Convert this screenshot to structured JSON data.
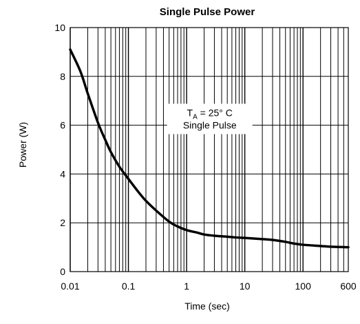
{
  "chart_data": {
    "type": "line",
    "title": "Single Pulse Power",
    "xlabel": "Time (sec)",
    "ylabel": "Power  (W)",
    "xscale": "log",
    "xlim": [
      0.01,
      600
    ],
    "ylim": [
      0,
      10
    ],
    "grid": true,
    "x_ticks": [
      0.01,
      0.1,
      1,
      10,
      100,
      600
    ],
    "x_tick_labels": [
      "0.01",
      "0.1",
      "1",
      "10",
      "100",
      "600"
    ],
    "y_ticks": [
      0,
      2,
      4,
      6,
      8,
      10
    ],
    "y_tick_labels": [
      "0",
      "2",
      "4",
      "6",
      "8",
      "10"
    ],
    "annotation": {
      "line1_main": "T",
      "line1_sub": "A",
      "line1_rest": " = 25° C",
      "line2": "Single Pulse",
      "x": 2.5,
      "y": 6.2
    },
    "series": [
      {
        "x": [
          0.01,
          0.015,
          0.02,
          0.03,
          0.04,
          0.05,
          0.07,
          0.1,
          0.15,
          0.2,
          0.3,
          0.5,
          0.7,
          1,
          1.5,
          2,
          3,
          5,
          7,
          10,
          20,
          30,
          50,
          70,
          100,
          200,
          300,
          600
        ],
        "y": [
          9.1,
          8.2,
          7.3,
          6.1,
          5.4,
          4.9,
          4.3,
          3.8,
          3.25,
          2.9,
          2.5,
          2.05,
          1.85,
          1.7,
          1.6,
          1.52,
          1.47,
          1.43,
          1.4,
          1.38,
          1.33,
          1.3,
          1.22,
          1.15,
          1.1,
          1.05,
          1.02,
          1.0
        ],
        "color": "#000000"
      }
    ]
  }
}
